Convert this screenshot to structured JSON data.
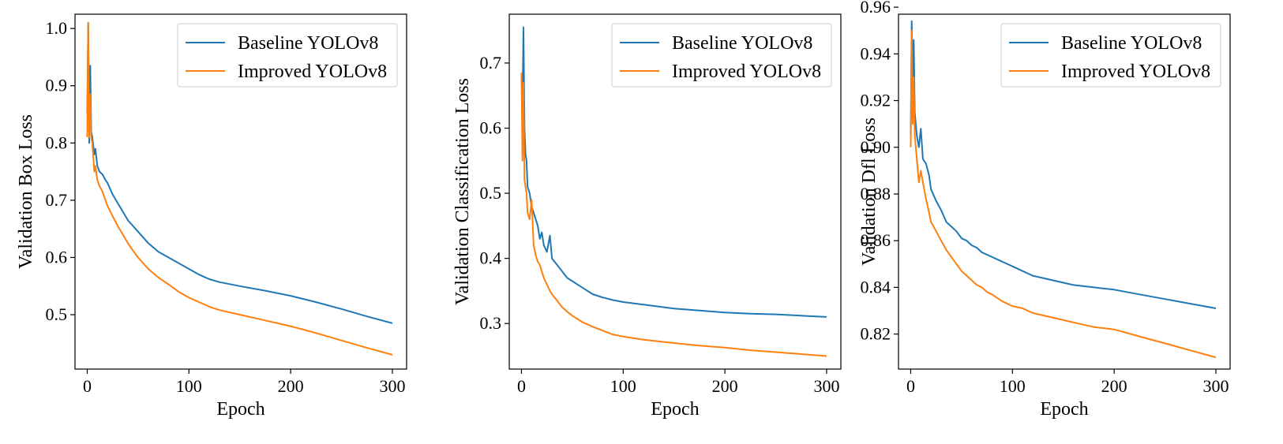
{
  "colors": {
    "baseline": "#1f77b4",
    "improved": "#ff7f0e",
    "axes": "#000000"
  },
  "chart_data": [
    {
      "type": "line",
      "title": "",
      "xlabel": "Epoch",
      "ylabel": "Validation Box Loss",
      "xlim": [
        -12,
        314
      ],
      "ylim": [
        0.405,
        1.025
      ],
      "xticks": [
        0,
        100,
        200,
        300
      ],
      "yticks": [
        0.5,
        0.6,
        0.7,
        0.8,
        0.9,
        1.0
      ],
      "ytick_labels": [
        "0.5",
        "0.6",
        "0.7",
        "0.8",
        "0.9",
        "1.0"
      ],
      "grid": false,
      "legend": "top-right",
      "series": [
        {
          "name": "Baseline YOLOv8",
          "color": "#1f77b4",
          "x": [
            0,
            1,
            2,
            3,
            4,
            5,
            7,
            8,
            10,
            12,
            15,
            18,
            20,
            25,
            30,
            35,
            40,
            45,
            50,
            60,
            70,
            80,
            90,
            100,
            110,
            120,
            130,
            150,
            175,
            200,
            225,
            250,
            275,
            300
          ],
          "y": [
            0.85,
            1.01,
            0.8,
            0.935,
            0.82,
            0.81,
            0.78,
            0.79,
            0.76,
            0.75,
            0.745,
            0.735,
            0.73,
            0.71,
            0.695,
            0.68,
            0.665,
            0.655,
            0.645,
            0.625,
            0.61,
            0.6,
            0.59,
            0.58,
            0.57,
            0.562,
            0.557,
            0.55,
            0.542,
            0.533,
            0.522,
            0.51,
            0.497,
            0.485
          ]
        },
        {
          "name": "Improved YOLOv8",
          "color": "#ff7f0e",
          "x": [
            0,
            1,
            2,
            3,
            4,
            5,
            7,
            8,
            10,
            12,
            15,
            18,
            20,
            25,
            30,
            35,
            40,
            45,
            50,
            60,
            70,
            80,
            90,
            100,
            110,
            120,
            130,
            150,
            175,
            200,
            225,
            250,
            275,
            300
          ],
          "y": [
            0.81,
            1.01,
            0.81,
            0.885,
            0.81,
            0.8,
            0.75,
            0.76,
            0.735,
            0.725,
            0.715,
            0.7,
            0.69,
            0.672,
            0.655,
            0.64,
            0.625,
            0.612,
            0.6,
            0.58,
            0.565,
            0.553,
            0.54,
            0.53,
            0.522,
            0.514,
            0.508,
            0.5,
            0.49,
            0.48,
            0.468,
            0.455,
            0.442,
            0.43
          ]
        }
      ]
    },
    {
      "type": "line",
      "title": "",
      "xlabel": "Epoch",
      "ylabel": "Validation Classification Loss",
      "xlim": [
        -12,
        314
      ],
      "ylim": [
        0.23,
        0.775
      ],
      "xticks": [
        0,
        100,
        200,
        300
      ],
      "yticks": [
        0.3,
        0.4,
        0.5,
        0.6,
        0.7
      ],
      "ytick_labels": [
        "0.3",
        "0.4",
        "0.5",
        "0.6",
        "0.7"
      ],
      "grid": false,
      "legend": "top-right",
      "series": [
        {
          "name": "Baseline YOLOv8",
          "color": "#1f77b4",
          "x": [
            0,
            1,
            2,
            3,
            4,
            5,
            6,
            8,
            10,
            12,
            14,
            16,
            18,
            20,
            22,
            25,
            28,
            30,
            35,
            40,
            45,
            50,
            55,
            60,
            70,
            80,
            90,
            100,
            120,
            150,
            175,
            200,
            225,
            250,
            275,
            300
          ],
          "y": [
            0.68,
            0.63,
            0.755,
            0.6,
            0.56,
            0.55,
            0.51,
            0.5,
            0.48,
            0.47,
            0.46,
            0.45,
            0.43,
            0.44,
            0.42,
            0.41,
            0.435,
            0.4,
            0.39,
            0.38,
            0.37,
            0.365,
            0.36,
            0.355,
            0.345,
            0.34,
            0.336,
            0.333,
            0.329,
            0.323,
            0.32,
            0.317,
            0.315,
            0.314,
            0.312,
            0.31
          ]
        },
        {
          "name": "Improved YOLOv8",
          "color": "#ff7f0e",
          "x": [
            0,
            1,
            2,
            3,
            4,
            5,
            6,
            8,
            10,
            12,
            14,
            16,
            18,
            20,
            22,
            25,
            28,
            30,
            35,
            40,
            45,
            50,
            55,
            60,
            70,
            80,
            90,
            100,
            120,
            150,
            175,
            200,
            225,
            250,
            275,
            300
          ],
          "y": [
            0.685,
            0.55,
            0.67,
            0.52,
            0.51,
            0.5,
            0.47,
            0.46,
            0.49,
            0.42,
            0.405,
            0.395,
            0.39,
            0.38,
            0.37,
            0.36,
            0.35,
            0.345,
            0.335,
            0.325,
            0.318,
            0.312,
            0.307,
            0.302,
            0.295,
            0.289,
            0.283,
            0.28,
            0.275,
            0.27,
            0.266,
            0.263,
            0.259,
            0.256,
            0.253,
            0.25
          ]
        }
      ]
    },
    {
      "type": "line",
      "title": "",
      "xlabel": "Epoch",
      "ylabel": "Validation Dfl Loss",
      "xlim": [
        -12,
        314
      ],
      "ylim": [
        0.805,
        0.957
      ],
      "xticks": [
        0,
        100,
        200,
        300
      ],
      "yticks": [
        0.82,
        0.84,
        0.86,
        0.88,
        0.9,
        0.92,
        0.94,
        0.96
      ],
      "ytick_labels": [
        "0.82",
        "0.84",
        "0.86",
        "0.88",
        "0.90",
        "0.92",
        "0.94",
        "0.96"
      ],
      "grid": false,
      "legend": "top-right",
      "series": [
        {
          "name": "Baseline YOLOv8",
          "color": "#1f77b4",
          "x": [
            0,
            1,
            2,
            3,
            4,
            5,
            6,
            8,
            10,
            12,
            15,
            18,
            20,
            25,
            30,
            35,
            40,
            45,
            50,
            55,
            60,
            65,
            70,
            75,
            80,
            90,
            100,
            110,
            120,
            140,
            160,
            180,
            200,
            225,
            250,
            275,
            300
          ],
          "y": [
            0.905,
            0.954,
            0.93,
            0.946,
            0.915,
            0.91,
            0.905,
            0.9,
            0.908,
            0.895,
            0.893,
            0.888,
            0.882,
            0.877,
            0.873,
            0.868,
            0.866,
            0.864,
            0.861,
            0.86,
            0.858,
            0.857,
            0.855,
            0.854,
            0.853,
            0.851,
            0.849,
            0.847,
            0.845,
            0.843,
            0.841,
            0.84,
            0.839,
            0.837,
            0.835,
            0.833,
            0.831
          ]
        },
        {
          "name": "Improved YOLOv8",
          "color": "#ff7f0e",
          "x": [
            0,
            1,
            2,
            3,
            4,
            5,
            6,
            8,
            10,
            12,
            15,
            18,
            20,
            25,
            30,
            35,
            40,
            45,
            50,
            55,
            60,
            65,
            70,
            75,
            80,
            90,
            100,
            110,
            120,
            140,
            160,
            180,
            200,
            225,
            250,
            275,
            300
          ],
          "y": [
            0.9,
            0.95,
            0.91,
            0.93,
            0.905,
            0.9,
            0.895,
            0.885,
            0.89,
            0.885,
            0.878,
            0.872,
            0.868,
            0.864,
            0.86,
            0.856,
            0.853,
            0.85,
            0.847,
            0.845,
            0.843,
            0.841,
            0.84,
            0.838,
            0.837,
            0.834,
            0.832,
            0.831,
            0.829,
            0.827,
            0.825,
            0.823,
            0.822,
            0.819,
            0.816,
            0.813,
            0.81
          ]
        }
      ]
    }
  ]
}
